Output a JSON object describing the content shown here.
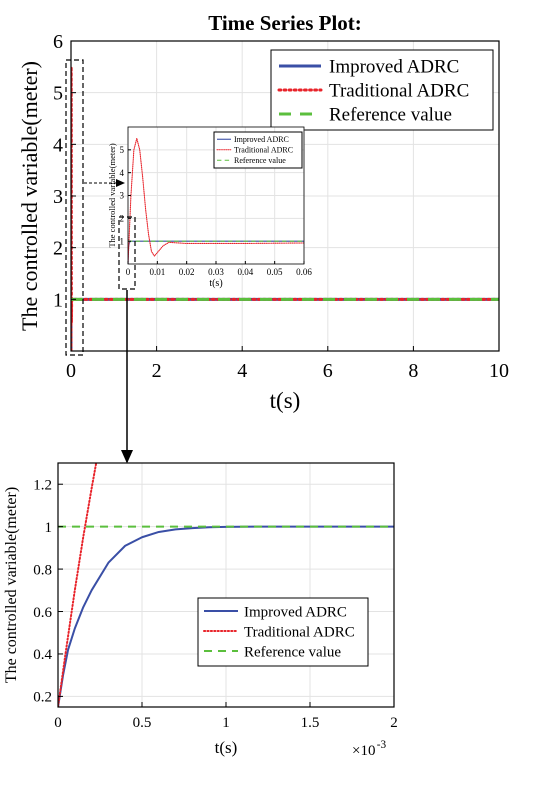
{
  "title": "Time Series Plot:",
  "colors": {
    "improved": "#3a4fa6",
    "traditional": "#e8232a",
    "reference": "#5bbf3d",
    "grid": "#e3e3e3",
    "axis": "#000000"
  },
  "chart_data": [
    {
      "id": "main",
      "type": "line",
      "title": "Time Series Plot:",
      "xlabel": "t(s)",
      "ylabel": "The controlled variable(meter)",
      "xlim": [
        0,
        10
      ],
      "ylim": [
        0,
        6
      ],
      "xticks": [
        0,
        2,
        4,
        6,
        8,
        10
      ],
      "yticks": [
        1,
        2,
        3,
        4,
        5,
        6
      ],
      "grid": true,
      "legend_position": "top-right",
      "series": [
        {
          "name": "Improved ADRC",
          "style": "solid",
          "x": [
            0,
            0.0002,
            0.0004,
            0.0008,
            0.002,
            0.005,
            10
          ],
          "y": [
            0,
            0.7,
            0.91,
            0.99,
            1.0,
            1.0,
            1.0
          ]
        },
        {
          "name": "Traditional ADRC",
          "style": "dotted",
          "x": [
            0,
            0.002,
            0.004,
            0.006,
            0.008,
            0.01,
            0.012,
            0.015,
            0.02,
            0.03,
            0.06,
            10
          ],
          "y": [
            0,
            4.0,
            5.5,
            4.3,
            1.5,
            0.55,
            0.7,
            0.95,
            1.0,
            1.0,
            1.0,
            1.0
          ]
        },
        {
          "name": "Reference value",
          "style": "dashed",
          "x": [
            0,
            10
          ],
          "y": [
            1,
            1
          ]
        }
      ]
    },
    {
      "id": "inset",
      "type": "line",
      "xlabel": "t(s)",
      "ylabel": "The controlled variable(meter)",
      "xlim": [
        0,
        0.06
      ],
      "ylim": [
        0,
        6
      ],
      "xticks": [
        0,
        0.01,
        0.02,
        0.03,
        0.04,
        0.05,
        0.06
      ],
      "xtick_labels": [
        "0",
        "0.01",
        "0.02",
        "0.03",
        "0.04",
        "0.05",
        "0.06"
      ],
      "yticks": [
        1,
        2,
        3,
        4,
        5
      ],
      "grid": true,
      "legend_position": "top-right",
      "series": [
        {
          "name": "Improved ADRC",
          "style": "solid",
          "x": [
            0,
            0.0002,
            0.0005,
            0.001,
            0.06
          ],
          "y": [
            0,
            0.75,
            0.95,
            1.0,
            1.0
          ]
        },
        {
          "name": "Traditional ADRC",
          "style": "dotted",
          "x": [
            0,
            0.001,
            0.002,
            0.003,
            0.004,
            0.005,
            0.006,
            0.007,
            0.008,
            0.009,
            0.01,
            0.012,
            0.014,
            0.016,
            0.02,
            0.03,
            0.04,
            0.06
          ],
          "y": [
            0,
            3.0,
            5.0,
            5.5,
            5.0,
            3.8,
            2.4,
            1.3,
            0.55,
            0.35,
            0.5,
            0.8,
            0.95,
            0.93,
            0.9,
            0.9,
            0.9,
            0.92
          ]
        },
        {
          "name": "Reference value",
          "style": "dashed",
          "x": [
            0,
            0.06
          ],
          "y": [
            1,
            1
          ]
        }
      ]
    },
    {
      "id": "zoom",
      "type": "line",
      "xlabel": "t(s)",
      "ylabel": "The controlled variable(meter)",
      "x_multiplier": "×10",
      "x_multiplier_exp": "-3",
      "xlim": [
        0,
        2
      ],
      "ylim": [
        0.15,
        1.3
      ],
      "xticks": [
        0,
        0.5,
        1,
        1.5,
        2
      ],
      "xtick_labels": [
        "0",
        "0.5",
        "1",
        "1.5",
        "2"
      ],
      "yticks": [
        0.2,
        0.4,
        0.6,
        0.8,
        1,
        1.2
      ],
      "ytick_labels": [
        "0.2",
        "0.4",
        "0.6",
        "0.8",
        "1",
        "1.2"
      ],
      "grid": true,
      "legend_position": "bottom-right",
      "series": [
        {
          "name": "Improved ADRC",
          "style": "solid",
          "x": [
            0.0,
            0.03,
            0.06,
            0.1,
            0.15,
            0.2,
            0.3,
            0.4,
            0.5,
            0.6,
            0.7,
            0.8,
            0.9,
            1.0,
            1.2,
            1.5,
            2.0
          ],
          "y": [
            0.15,
            0.3,
            0.42,
            0.52,
            0.62,
            0.7,
            0.83,
            0.91,
            0.95,
            0.975,
            0.987,
            0.993,
            0.997,
            0.999,
            1.0,
            1.0,
            1.0
          ]
        },
        {
          "name": "Traditional ADRC",
          "style": "dotted",
          "x": [
            0.0,
            0.05,
            0.1,
            0.15,
            0.2,
            0.25
          ],
          "y": [
            0.15,
            0.43,
            0.7,
            0.95,
            1.18,
            1.4
          ]
        },
        {
          "name": "Reference value",
          "style": "dashed",
          "x": [
            0,
            2
          ],
          "y": [
            1,
            1
          ]
        }
      ]
    }
  ]
}
